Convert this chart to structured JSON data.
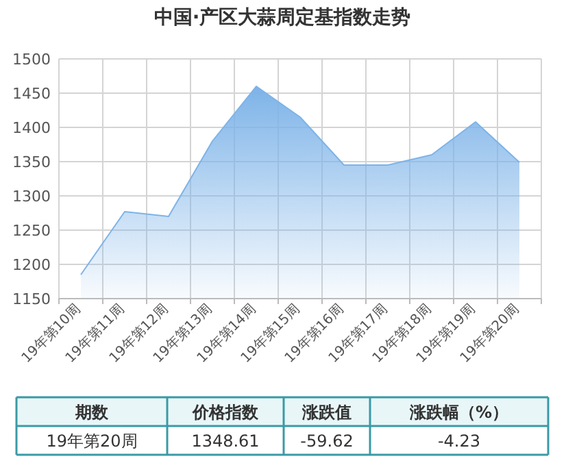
{
  "chart_data": [
    {
      "type": "area",
      "title": "中国·产区大蒜周定基指数走势",
      "categories": [
        "19年第10周",
        "19年第11周",
        "19年第12周",
        "19年第13周",
        "19年第14周",
        "19年第15周",
        "19年第16周",
        "19年第17周",
        "19年第18周",
        "19年第19周",
        "19年第20周"
      ],
      "values": [
        1185,
        1277,
        1270,
        1380,
        1460,
        1415,
        1345,
        1345,
        1360,
        1408,
        1349
      ],
      "color": "#7db3e8",
      "ylim": [
        1150,
        1500
      ],
      "yticks": [
        1150,
        1200,
        1250,
        1300,
        1350,
        1400,
        1450,
        1500
      ],
      "grid": true
    },
    {
      "type": "other",
      "annotations": [
        "期数",
        "价格指数",
        "涨跌值",
        "涨跌幅（%）",
        "19年第20周",
        "1348.61",
        "-59.62",
        "-4.23"
      ]
    }
  ]
}
